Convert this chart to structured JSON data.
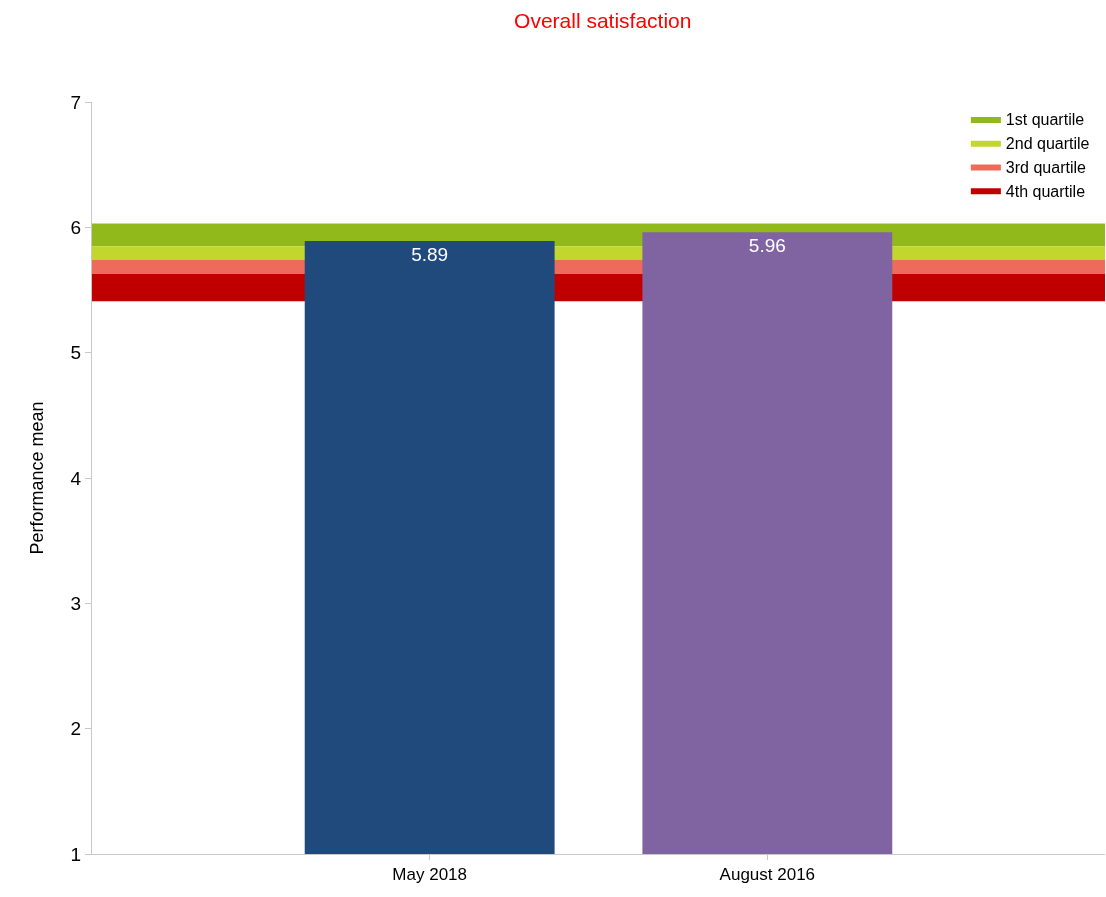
{
  "chart_data": {
    "type": "bar",
    "title": "Overall satisfaction",
    "ylabel": "Performance mean",
    "categories": [
      "May 2018",
      "August 2016"
    ],
    "values": [
      5.89,
      5.96
    ],
    "colors": [
      "#214a7c",
      "#8064a2"
    ],
    "data_labels": true,
    "ylim": [
      1,
      7
    ],
    "yticks": [
      1,
      2,
      3,
      4,
      5,
      6,
      7
    ],
    "grid": false,
    "legend": "top right",
    "bands": [
      {
        "axis": "y",
        "from": 5.85,
        "to": 6.03,
        "label": "1st quartile",
        "color": "#92b91c"
      },
      {
        "axis": "y",
        "from": 5.74,
        "to": 5.85,
        "label": "2nd quartile",
        "color": "#c2d62e"
      },
      {
        "axis": "y",
        "from": 5.63,
        "to": 5.74,
        "label": "3rd quartile",
        "color": "#ee6a5a"
      },
      {
        "axis": "y",
        "from": 5.41,
        "to": 5.63,
        "label": "4th quartile",
        "color": "#c00000"
      }
    ]
  }
}
